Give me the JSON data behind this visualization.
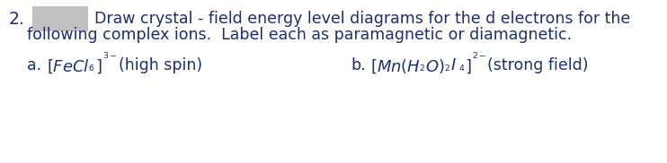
{
  "number": "2.",
  "main_text_line1": "Draw crystal - field energy level diagrams for the d electrons for the",
  "main_text_line2": "following complex ions.  Label each as paramagnetic or diamagnetic.",
  "item_a_prefix": "a.",
  "item_a_label": "(high spin)",
  "item_b_prefix": "b.",
  "item_b_label": "(strong field)",
  "text_color": "#1c2f6e",
  "background_color": "#ffffff",
  "font_size_main": 12.5,
  "font_size_items": 12.5,
  "font_size_formula": 13.0,
  "font_size_script": 9.5,
  "gray_box_color": "#c0c0c0",
  "number_fontsize": 13.5
}
